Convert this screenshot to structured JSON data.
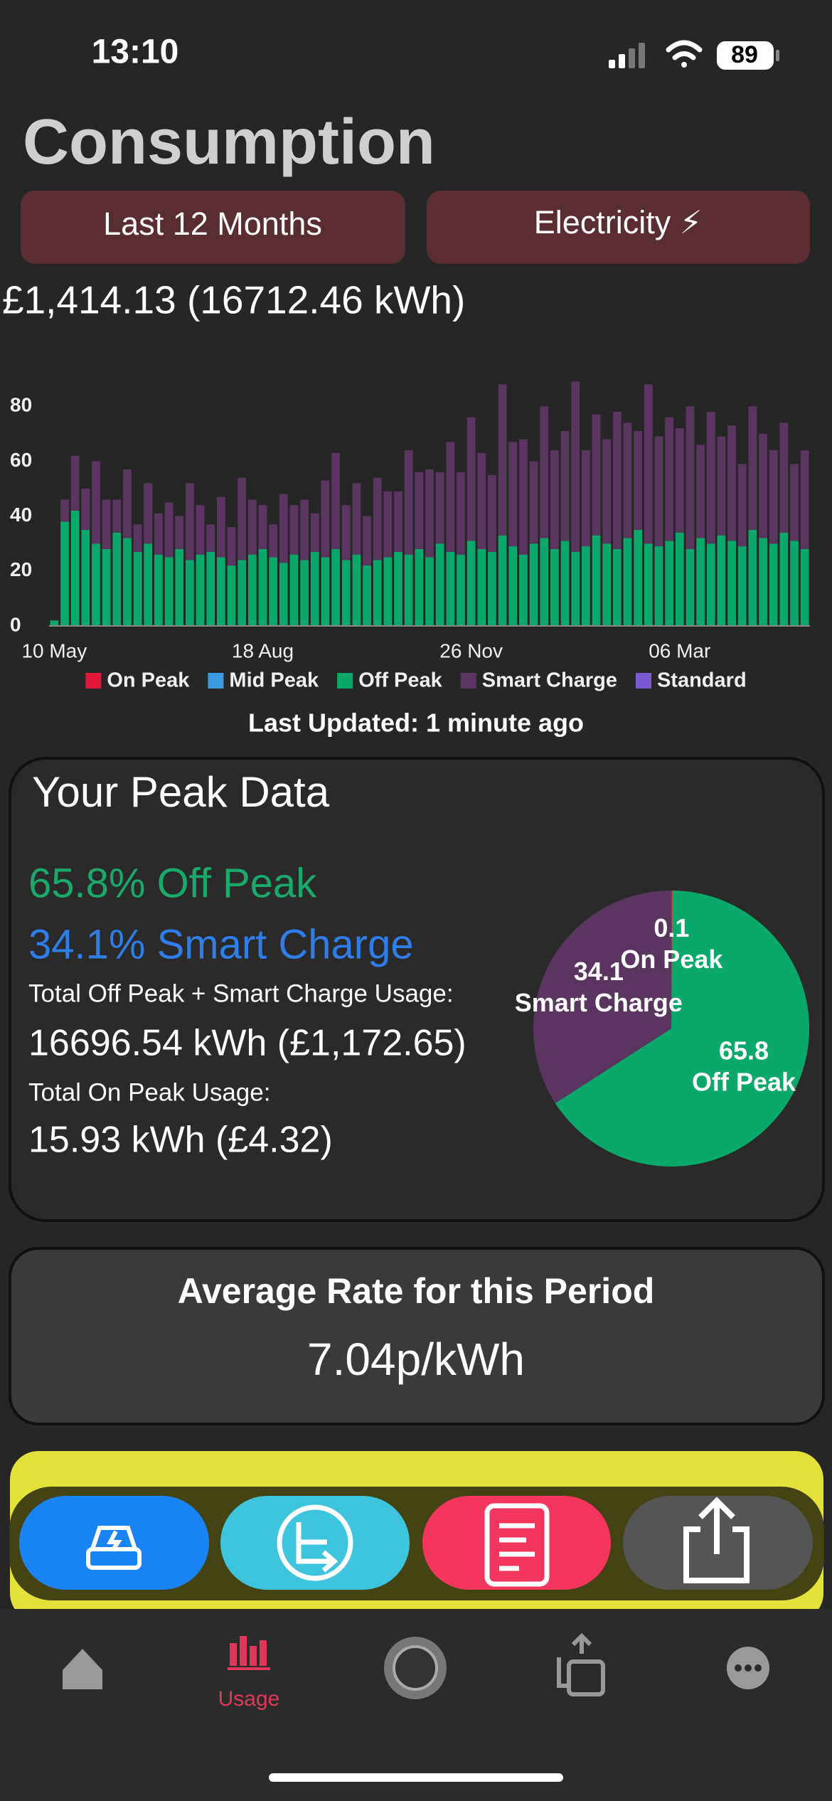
{
  "status_bar": {
    "time": "13:10",
    "battery": "89"
  },
  "header": {
    "title": "Consumption"
  },
  "filters": [
    "Last 12 Months",
    "Electricity ⚡"
  ],
  "total": "£1,414.13 (16712.46 kWh)",
  "chart_data": [
    {
      "type": "bar",
      "stacked": true,
      "grid": false,
      "categories": [
        "10 May",
        null,
        null,
        null,
        null,
        null,
        null,
        null,
        null,
        null,
        null,
        null,
        null,
        null,
        null,
        null,
        null,
        null,
        null,
        null,
        "18 Aug",
        null,
        null,
        null,
        null,
        null,
        null,
        null,
        null,
        null,
        null,
        null,
        null,
        null,
        null,
        null,
        null,
        null,
        null,
        null,
        "26 Nov",
        null,
        null,
        null,
        null,
        null,
        null,
        null,
        null,
        null,
        null,
        null,
        null,
        null,
        null,
        null,
        null,
        null,
        null,
        null,
        "06 Mar",
        null,
        null,
        null,
        null,
        null,
        null,
        null,
        null,
        null,
        null,
        null,
        null
      ],
      "ylim": [
        0,
        100
      ],
      "yticks": [
        0,
        20,
        40,
        60,
        80
      ],
      "series": [
        {
          "name": "On Peak",
          "color": "#e0193a",
          "values": [
            0,
            0,
            0,
            0,
            0,
            0,
            0,
            0,
            0,
            0,
            0,
            0,
            0,
            0,
            0,
            0,
            0,
            0,
            0,
            0,
            0,
            0,
            0,
            0,
            0,
            0,
            0,
            0,
            0,
            0,
            0,
            0,
            0,
            0,
            0,
            0,
            0,
            0,
            0,
            0,
            0,
            0,
            0,
            0,
            0,
            0,
            0,
            0,
            0,
            0,
            0,
            0,
            0,
            0,
            0,
            0,
            0,
            0,
            0,
            0,
            0,
            0,
            0,
            0,
            0,
            0,
            0,
            0,
            0,
            0,
            0,
            0,
            0
          ]
        },
        {
          "name": "Mid Peak",
          "color": "#3a9be0",
          "values": [
            0,
            0,
            0,
            0,
            0,
            0,
            0,
            0,
            0,
            0,
            0,
            0,
            0,
            0,
            0,
            0,
            0,
            0,
            0,
            0,
            0,
            0,
            0,
            0,
            0,
            0,
            0,
            0,
            0,
            0,
            0,
            0,
            0,
            0,
            0,
            0,
            0,
            0,
            0,
            0,
            0,
            0,
            0,
            0,
            0,
            0,
            0,
            0,
            0,
            0,
            0,
            0,
            0,
            0,
            0,
            0,
            0,
            0,
            0,
            0,
            0,
            0,
            0,
            0,
            0,
            0,
            0,
            0,
            0,
            0,
            0,
            0,
            0
          ]
        },
        {
          "name": "Off Peak",
          "color": "#0aa86a",
          "values": [
            2,
            38,
            42,
            35,
            30,
            28,
            34,
            32,
            27,
            30,
            26,
            25,
            28,
            24,
            26,
            27,
            25,
            22,
            24,
            26,
            28,
            25,
            23,
            26,
            24,
            27,
            25,
            28,
            24,
            26,
            22,
            24,
            25,
            27,
            26,
            28,
            25,
            30,
            27,
            26,
            31,
            28,
            27,
            33,
            29,
            26,
            30,
            32,
            28,
            31,
            27,
            29,
            33,
            30,
            28,
            32,
            35,
            30,
            29,
            31,
            34,
            28,
            32,
            30,
            33,
            31,
            29,
            35,
            32,
            30,
            34,
            31,
            28
          ]
        },
        {
          "name": "Smart Charge",
          "color": "#5a3560",
          "values": [
            0,
            8,
            20,
            15,
            30,
            18,
            12,
            25,
            10,
            22,
            15,
            20,
            12,
            28,
            18,
            10,
            22,
            14,
            30,
            20,
            16,
            12,
            25,
            18,
            22,
            14,
            28,
            35,
            20,
            26,
            18,
            30,
            24,
            22,
            38,
            28,
            32,
            26,
            40,
            30,
            45,
            35,
            28,
            55,
            38,
            42,
            30,
            48,
            36,
            40,
            62,
            35,
            44,
            38,
            50,
            42,
            36,
            58,
            40,
            45,
            38,
            52,
            34,
            48,
            36,
            42,
            30,
            45,
            38,
            34,
            40,
            28,
            36
          ]
        },
        {
          "name": "Standard",
          "color": "#7a5cd0",
          "values": [
            0,
            0,
            0,
            0,
            0,
            0,
            0,
            0,
            0,
            0,
            0,
            0,
            0,
            0,
            0,
            0,
            0,
            0,
            0,
            0,
            0,
            0,
            0,
            0,
            0,
            0,
            0,
            0,
            0,
            0,
            0,
            0,
            0,
            0,
            0,
            0,
            0,
            0,
            0,
            0,
            0,
            0,
            0,
            0,
            0,
            0,
            0,
            0,
            0,
            0,
            0,
            0,
            0,
            0,
            0,
            0,
            0,
            0,
            0,
            0,
            0,
            0,
            0,
            0,
            0,
            0,
            0,
            0,
            0,
            0,
            0,
            0,
            0
          ]
        }
      ]
    },
    {
      "type": "pie",
      "categories": [
        "On Peak",
        "Off Peak",
        "Smart Charge"
      ],
      "values": [
        0.1,
        65.8,
        34.1
      ],
      "colors": [
        "#e0193a",
        "#0aa86a",
        "#5a3560"
      ]
    }
  ],
  "last_updated": "Last Updated: 1 minute ago",
  "peak_card": {
    "title": "Your Peak Data",
    "off_peak": "65.8% Off Peak",
    "smart_charge": "34.1% Smart Charge",
    "combined_label": "Total Off Peak + Smart Charge Usage:",
    "combined_value": "16696.54 kWh (£1,172.65)",
    "on_peak_label": "Total On Peak Usage:",
    "on_peak_value": "15.93 kWh (£4.32)"
  },
  "average_card": {
    "title": "Average Rate for this Period",
    "value": "7.04p/kWh"
  },
  "tab_bar": {
    "active_label": "Usage"
  }
}
